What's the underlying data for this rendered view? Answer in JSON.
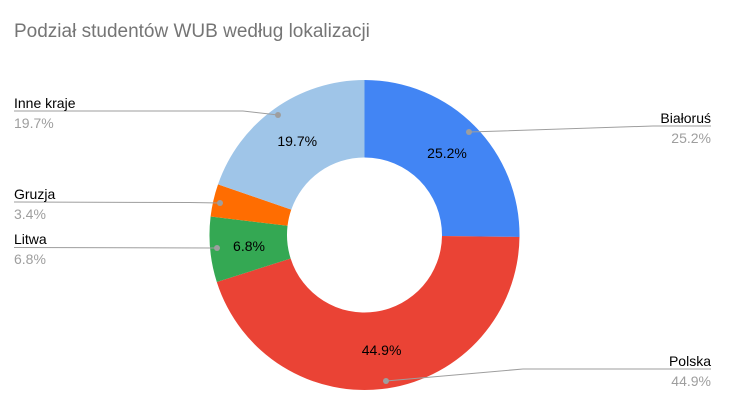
{
  "chart_data": {
    "type": "pie",
    "donut": true,
    "hole_ratio": 0.5,
    "title": "Podział studentów WUB według lokalizacji",
    "start_angle_deg": 0,
    "direction": "clockwise",
    "legend_position": "labeled-callouts",
    "title_color": "#757575",
    "label_color": "#000000",
    "pct_color": "#9e9e9e",
    "line_color": "#9e9e9e",
    "slices": [
      {
        "label": "Białoruś",
        "value_pct": 25.2,
        "pct_text": "25.2%",
        "color": "#4285f4",
        "show_inner_label": true
      },
      {
        "label": "Polska",
        "value_pct": 44.9,
        "pct_text": "44.9%",
        "color": "#ea4335",
        "show_inner_label": true
      },
      {
        "label": "Litwa",
        "value_pct": 6.8,
        "pct_text": "6.8%",
        "color": "#34a853",
        "show_inner_label": true
      },
      {
        "label": "Gruzja",
        "value_pct": 3.4,
        "pct_text": "3.4%",
        "color": "#ff6d01",
        "show_inner_label": false
      },
      {
        "label": "Inne kraje",
        "value_pct": 19.7,
        "pct_text": "19.7%",
        "color": "#9fc5e8",
        "show_inner_label": true
      }
    ]
  }
}
